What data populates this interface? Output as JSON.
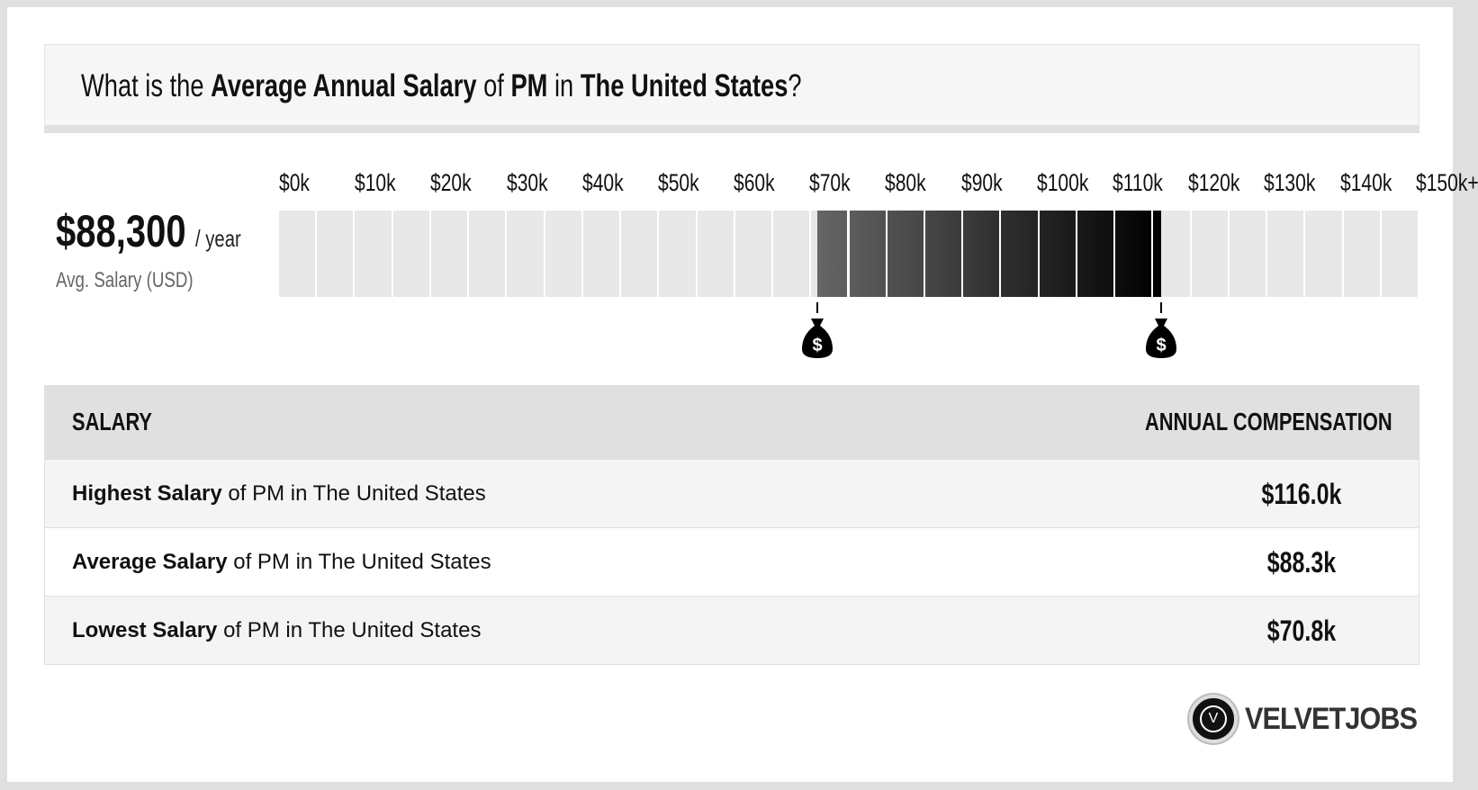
{
  "header": {
    "parts": [
      {
        "text": "What is the ",
        "bold": false
      },
      {
        "text": "Average Annual Salary",
        "bold": true
      },
      {
        "text": " of ",
        "bold": false
      },
      {
        "text": "PM",
        "bold": true
      },
      {
        "text": " in ",
        "bold": false
      },
      {
        "text": "The United States",
        "bold": true
      },
      {
        "text": "?",
        "bold": false
      }
    ]
  },
  "summary": {
    "amount": "$88,300",
    "per": "/ year",
    "label": "Avg. Salary (USD)"
  },
  "range": {
    "ticks": [
      "$0k",
      "$10k",
      "$20k",
      "$30k",
      "$40k",
      "$50k",
      "$60k",
      "$70k",
      "$80k",
      "$90k",
      "$100k",
      "$110k",
      "$120k",
      "$130k",
      "$140k",
      "$150k+"
    ],
    "min_k": 0,
    "max_k": 150,
    "cell_k": 5,
    "low_k": 70.8,
    "high_k": 116.0,
    "marker_icon": "money-bag-icon",
    "marker_glyph": "$"
  },
  "table": {
    "headers": {
      "salary": "SALARY",
      "comp": "ANNUAL COMPENSATION"
    },
    "rows": [
      {
        "bold": "Highest Salary",
        "rest": " of PM in The United States",
        "value": "$116.0k"
      },
      {
        "bold": "Average Salary",
        "rest": " of PM in The United States",
        "value": "$88.3k"
      },
      {
        "bold": "Lowest Salary",
        "rest": " of PM in The United States",
        "value": "$70.8k"
      }
    ]
  },
  "logo": {
    "mark": "V",
    "name": "VELVETJOBS"
  },
  "colors": {
    "cell": "#e8e8e8",
    "dark_start": "#666666",
    "dark_end": "#000000"
  }
}
